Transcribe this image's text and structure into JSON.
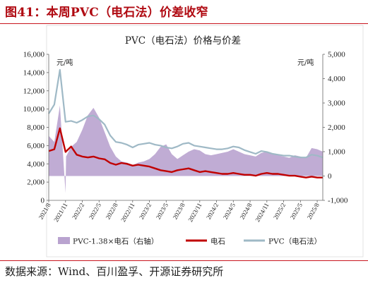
{
  "figure": {
    "title": "图41：本周PVC（电石法）价差收窄",
    "source": "数据来源：Wind、百川盈孚、开源证券研究所"
  },
  "chart_data": {
    "type": "area",
    "title": "PVC（电石法）价格与价差",
    "left_unit": "元/吨",
    "right_unit": "元/吨",
    "left_axis": {
      "min": 0,
      "max": 16000,
      "ticks": [
        "0",
        "2,000",
        "4,000",
        "6,000",
        "8,000",
        "10,000",
        "12,000",
        "14,000",
        "16,000"
      ]
    },
    "right_axis": {
      "min": -1000,
      "max": 5000,
      "ticks": [
        "-1,000",
        "0",
        "1,000",
        "2,000",
        "3,000",
        "4,000",
        "5,000"
      ]
    },
    "x_ticks": [
      "2021/8",
      "2021/11",
      "2022/2",
      "2022/5",
      "2022/8",
      "2022/11",
      "2023/2",
      "2023/5",
      "2023/8",
      "2023/11",
      "2024/2",
      "2024/5",
      "2024/8",
      "2024/11",
      "2025/2",
      "2025/5",
      "2025/8"
    ],
    "x_range": [
      "2021/8",
      "2025/9"
    ],
    "legend": [
      "PVC-1.38×电石（右轴）",
      "电石",
      "PVC（电石法）"
    ],
    "colors": {
      "spread": "#b9a3cf",
      "carbide": "#c00000",
      "pvc": "#9fb9c6"
    },
    "series": [
      {
        "name": "PVC-1.38×电石（右轴）",
        "axis": "right",
        "points": [
          [
            "2021/8",
            1650
          ],
          [
            "2021/9",
            1400
          ],
          [
            "2021/10",
            2900
          ],
          [
            "2021/11",
            -700
          ],
          [
            "2021/11",
            800
          ],
          [
            "2021/12",
            1200
          ],
          [
            "2022/1",
            1400
          ],
          [
            "2022/2",
            1900
          ],
          [
            "2022/3",
            2500
          ],
          [
            "2022/4",
            2800
          ],
          [
            "2022/5",
            2400
          ],
          [
            "2022/6",
            1800
          ],
          [
            "2022/7",
            1200
          ],
          [
            "2022/8",
            800
          ],
          [
            "2022/9",
            600
          ],
          [
            "2022/10",
            550
          ],
          [
            "2022/11",
            450
          ],
          [
            "2022/12",
            550
          ],
          [
            "2023/1",
            600
          ],
          [
            "2023/2",
            700
          ],
          [
            "2023/3",
            900
          ],
          [
            "2023/4",
            1200
          ],
          [
            "2023/5",
            1300
          ],
          [
            "2023/6",
            900
          ],
          [
            "2023/7",
            700
          ],
          [
            "2023/8",
            850
          ],
          [
            "2023/9",
            1000
          ],
          [
            "2023/10",
            1100
          ],
          [
            "2023/11",
            1050
          ],
          [
            "2023/12",
            900
          ],
          [
            "2024/1",
            850
          ],
          [
            "2024/2",
            900
          ],
          [
            "2024/3",
            950
          ],
          [
            "2024/4",
            1000
          ],
          [
            "2024/5",
            1100
          ],
          [
            "2024/6",
            1000
          ],
          [
            "2024/7",
            900
          ],
          [
            "2024/8",
            850
          ],
          [
            "2024/9",
            800
          ],
          [
            "2024/10",
            950
          ],
          [
            "2024/11",
            1000
          ],
          [
            "2024/12",
            900
          ],
          [
            "2025/1",
            850
          ],
          [
            "2025/2",
            800
          ],
          [
            "2025/3",
            750
          ],
          [
            "2025/4",
            850
          ],
          [
            "2025/5",
            800
          ],
          [
            "2025/6",
            750
          ],
          [
            "2025/7",
            1150
          ],
          [
            "2025/8",
            1100
          ],
          [
            "2025/9",
            1000
          ]
        ]
      },
      {
        "name": "电石",
        "axis": "left",
        "points": [
          [
            "2021/8",
            5400
          ],
          [
            "2021/9",
            5600
          ],
          [
            "2021/10",
            7900
          ],
          [
            "2021/11",
            5300
          ],
          [
            "2021/12",
            5900
          ],
          [
            "2022/1",
            5000
          ],
          [
            "2022/2",
            4800
          ],
          [
            "2022/3",
            4700
          ],
          [
            "2022/4",
            4800
          ],
          [
            "2022/5",
            4600
          ],
          [
            "2022/6",
            4500
          ],
          [
            "2022/7",
            4100
          ],
          [
            "2022/8",
            3900
          ],
          [
            "2022/9",
            4100
          ],
          [
            "2022/10",
            4000
          ],
          [
            "2022/11",
            3800
          ],
          [
            "2022/12",
            3900
          ],
          [
            "2023/1",
            3800
          ],
          [
            "2023/2",
            3700
          ],
          [
            "2023/3",
            3500
          ],
          [
            "2023/4",
            3300
          ],
          [
            "2023/5",
            3200
          ],
          [
            "2023/6",
            3100
          ],
          [
            "2023/7",
            3300
          ],
          [
            "2023/8",
            3400
          ],
          [
            "2023/9",
            3500
          ],
          [
            "2023/10",
            3300
          ],
          [
            "2023/11",
            3100
          ],
          [
            "2023/12",
            3200
          ],
          [
            "2024/1",
            3100
          ],
          [
            "2024/2",
            3000
          ],
          [
            "2024/3",
            2900
          ],
          [
            "2024/4",
            2900
          ],
          [
            "2024/5",
            3000
          ],
          [
            "2024/6",
            2900
          ],
          [
            "2024/7",
            2800
          ],
          [
            "2024/8",
            2800
          ],
          [
            "2024/9",
            2700
          ],
          [
            "2024/10",
            2900
          ],
          [
            "2024/11",
            3000
          ],
          [
            "2024/12",
            2900
          ],
          [
            "2025/1",
            2900
          ],
          [
            "2025/2",
            2800
          ],
          [
            "2025/3",
            2700
          ],
          [
            "2025/4",
            2700
          ],
          [
            "2025/5",
            2600
          ],
          [
            "2025/6",
            2500
          ],
          [
            "2025/7",
            2600
          ],
          [
            "2025/8",
            2500
          ],
          [
            "2025/9",
            2500
          ]
        ]
      },
      {
        "name": "PVC（电石法）",
        "axis": "left",
        "points": [
          [
            "2021/8",
            9500
          ],
          [
            "2021/9",
            10500
          ],
          [
            "2021/10",
            14300
          ],
          [
            "2021/11",
            8600
          ],
          [
            "2021/12",
            8700
          ],
          [
            "2022/1",
            8500
          ],
          [
            "2022/2",
            8800
          ],
          [
            "2022/3",
            9200
          ],
          [
            "2022/4",
            9300
          ],
          [
            "2022/5",
            8900
          ],
          [
            "2022/6",
            8300
          ],
          [
            "2022/7",
            7100
          ],
          [
            "2022/8",
            6400
          ],
          [
            "2022/9",
            6300
          ],
          [
            "2022/10",
            6100
          ],
          [
            "2022/11",
            5800
          ],
          [
            "2022/12",
            6100
          ],
          [
            "2023/1",
            6200
          ],
          [
            "2023/2",
            6300
          ],
          [
            "2023/3",
            6100
          ],
          [
            "2023/4",
            6000
          ],
          [
            "2023/5",
            5800
          ],
          [
            "2023/6",
            5700
          ],
          [
            "2023/7",
            5900
          ],
          [
            "2023/8",
            6200
          ],
          [
            "2023/9",
            6300
          ],
          [
            "2023/10",
            6000
          ],
          [
            "2023/11",
            5900
          ],
          [
            "2023/12",
            5800
          ],
          [
            "2024/1",
            5700
          ],
          [
            "2024/2",
            5600
          ],
          [
            "2024/3",
            5600
          ],
          [
            "2024/4",
            5700
          ],
          [
            "2024/5",
            5900
          ],
          [
            "2024/6",
            5800
          ],
          [
            "2024/7",
            5500
          ],
          [
            "2024/8",
            5300
          ],
          [
            "2024/9",
            5100
          ],
          [
            "2024/10",
            5400
          ],
          [
            "2024/11",
            5300
          ],
          [
            "2024/12",
            5100
          ],
          [
            "2025/1",
            5000
          ],
          [
            "2025/2",
            4900
          ],
          [
            "2025/3",
            4900
          ],
          [
            "2025/4",
            4800
          ],
          [
            "2025/5",
            4700
          ],
          [
            "2025/6",
            4700
          ],
          [
            "2025/7",
            5000
          ],
          [
            "2025/8",
            4900
          ],
          [
            "2025/9",
            4700
          ]
        ]
      }
    ],
    "grid": false,
    "legend_position": "bottom"
  }
}
